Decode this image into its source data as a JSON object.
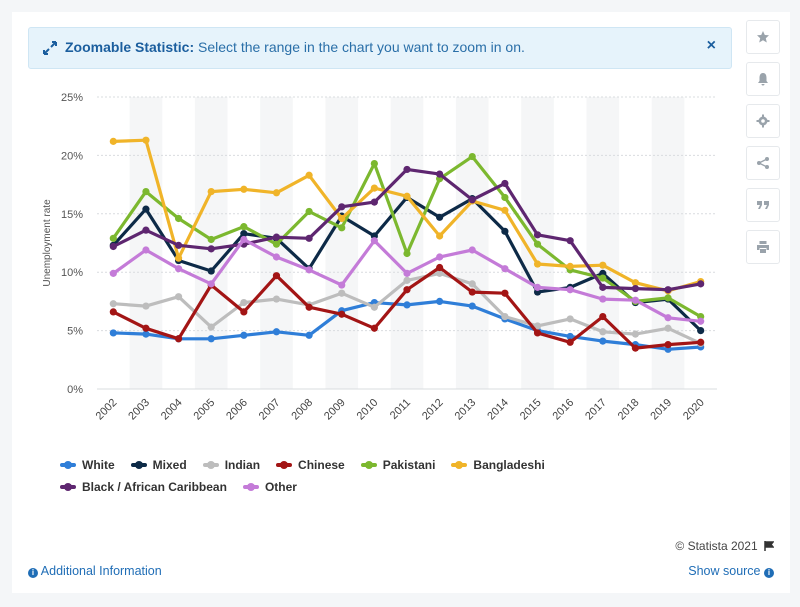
{
  "banner": {
    "title": "Zoomable Statistic:",
    "text": "Select the range in the chart you want to zoom in on.",
    "close": "×"
  },
  "sidebar": {
    "buttons": [
      {
        "icon": "star-icon"
      },
      {
        "icon": "bell-icon"
      },
      {
        "icon": "gear-icon"
      },
      {
        "icon": "share-icon"
      },
      {
        "icon": "quote-icon"
      },
      {
        "icon": "print-icon"
      }
    ]
  },
  "chart_data": {
    "type": "line",
    "title": "",
    "xlabel": "",
    "ylabel": "Unemployment rate",
    "ylim": [
      0,
      25
    ],
    "y_ticks": [
      "0%",
      "5%",
      "10%",
      "15%",
      "20%",
      "25%"
    ],
    "categories": [
      "2002",
      "2003",
      "2004",
      "2005",
      "2006",
      "2007",
      "2008",
      "2009",
      "2010",
      "2011",
      "2012",
      "2013",
      "2014",
      "2015",
      "2016",
      "2017",
      "2018",
      "2019",
      "2020"
    ],
    "series": [
      {
        "name": "White",
        "color": "#2f7ed8",
        "values": [
          4.8,
          4.7,
          4.3,
          4.3,
          4.6,
          4.9,
          4.6,
          6.7,
          7.4,
          7.2,
          7.5,
          7.1,
          6.0,
          5.0,
          4.5,
          4.1,
          3.8,
          3.4,
          3.6
        ]
      },
      {
        "name": "Mixed",
        "color": "#0d2a47",
        "values": [
          12.3,
          15.4,
          11.0,
          10.1,
          13.3,
          12.9,
          10.3,
          14.8,
          13.1,
          16.4,
          14.7,
          16.3,
          13.5,
          8.3,
          8.7,
          9.9,
          7.4,
          7.7,
          5.0
        ]
      },
      {
        "name": "Indian",
        "color": "#bdbdbd",
        "values": [
          7.3,
          7.1,
          7.9,
          5.3,
          7.4,
          7.7,
          7.2,
          8.2,
          7.0,
          9.3,
          9.9,
          9.0,
          6.2,
          5.4,
          6.0,
          4.9,
          4.7,
          5.2,
          3.9
        ]
      },
      {
        "name": "Chinese",
        "color": "#a31515",
        "values": [
          6.6,
          5.2,
          4.3,
          8.9,
          6.6,
          9.7,
          7.0,
          6.4,
          5.2,
          8.5,
          10.4,
          8.3,
          8.2,
          4.8,
          4.0,
          6.2,
          3.5,
          3.8,
          4.0
        ]
      },
      {
        "name": "Pakistani",
        "color": "#7cb82f",
        "values": [
          12.9,
          16.9,
          14.6,
          12.8,
          13.9,
          12.4,
          15.2,
          13.8,
          19.3,
          11.6,
          18.0,
          19.9,
          16.4,
          12.4,
          10.2,
          9.5,
          7.5,
          7.8,
          6.2
        ]
      },
      {
        "name": "Bangladeshi",
        "color": "#f0b429",
        "values": [
          21.2,
          21.3,
          11.2,
          16.9,
          17.1,
          16.8,
          18.3,
          14.6,
          17.2,
          16.5,
          13.1,
          16.1,
          15.3,
          10.7,
          10.5,
          10.6,
          9.1,
          8.4,
          9.2
        ]
      },
      {
        "name": "Black / African Caribbean",
        "color": "#5e2670",
        "values": [
          12.2,
          13.6,
          12.3,
          12.0,
          12.4,
          13.0,
          12.9,
          15.6,
          16.0,
          18.8,
          18.4,
          16.2,
          17.6,
          13.2,
          12.7,
          8.7,
          8.6,
          8.5,
          9.0
        ]
      },
      {
        "name": "Other",
        "color": "#c47bd8",
        "values": [
          9.9,
          11.9,
          10.3,
          9.0,
          12.8,
          11.3,
          10.2,
          8.9,
          12.7,
          9.9,
          11.3,
          11.9,
          10.3,
          8.7,
          8.5,
          7.7,
          7.6,
          6.1,
          5.8
        ]
      }
    ]
  },
  "footer": {
    "copyright": "© Statista 2021",
    "additional_info": "Additional Information",
    "show_source": "Show source"
  }
}
